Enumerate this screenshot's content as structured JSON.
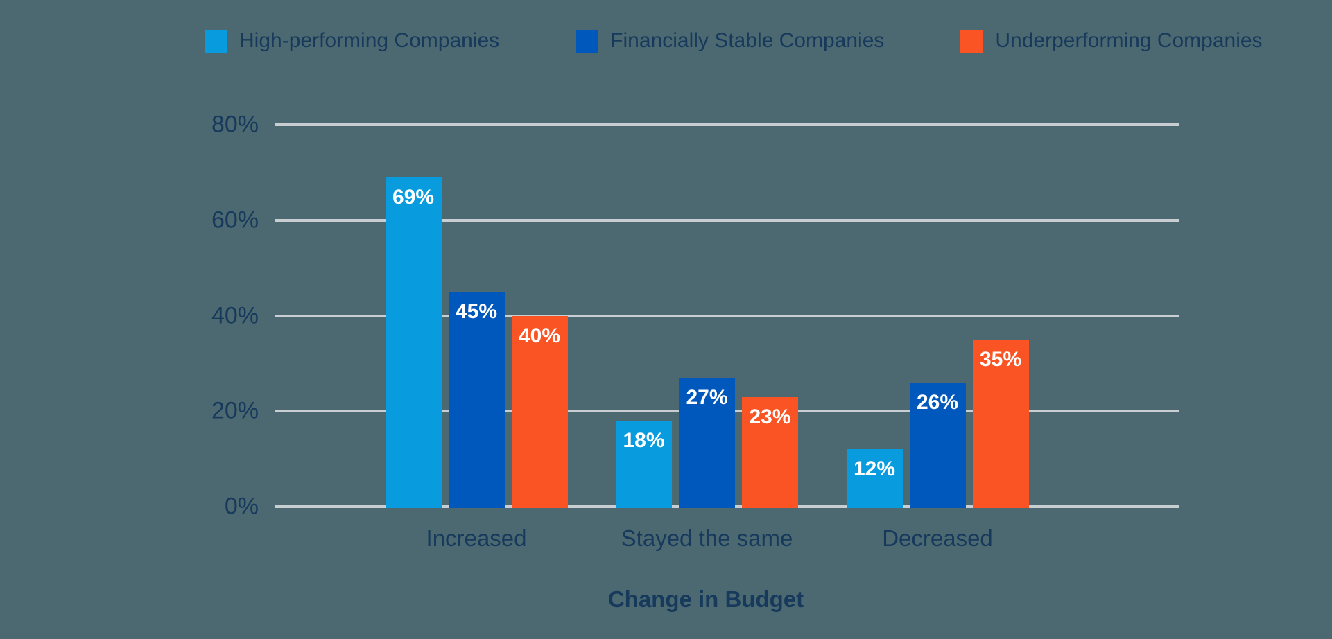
{
  "chart_data": {
    "type": "bar",
    "title": "",
    "xlabel": "Change in Budget",
    "ylabel": "",
    "categories": [
      "Increased",
      "Stayed the same",
      "Decreased"
    ],
    "series": [
      {
        "name": "High-performing Companies",
        "color": "#089CDF",
        "values": [
          69,
          18,
          12
        ]
      },
      {
        "name": "Financially Stable Companies",
        "color": "#0057BC",
        "values": [
          45,
          27,
          26
        ]
      },
      {
        "name": "Underperforming Companies",
        "color": "#FB5424",
        "values": [
          40,
          23,
          35
        ]
      }
    ],
    "value_label_format": "{v}%",
    "y_ticks": [
      {
        "label": "80%",
        "value": 80
      },
      {
        "label": "60%",
        "value": 60
      },
      {
        "label": "40%",
        "value": 40
      },
      {
        "label": "20%",
        "value": 20
      },
      {
        "label": "0%",
        "value": 0
      }
    ],
    "ylim": [
      0,
      80
    ],
    "grid": "horizontal",
    "legend_position": "top"
  },
  "style": {
    "background": "#4C6971",
    "gridline": "#C9CED3",
    "axis_text": "#16395C",
    "bar_label_text": "#FFFFFF"
  }
}
